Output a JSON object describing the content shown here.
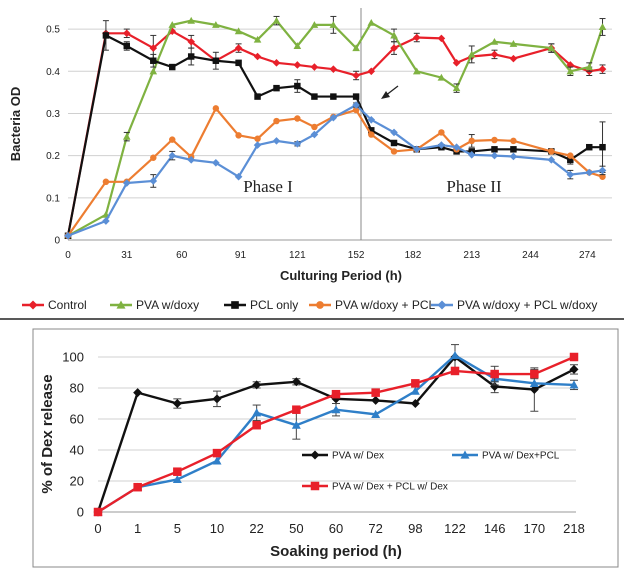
{
  "chart_data": [
    {
      "type": "line",
      "title": "",
      "xlabel": "Culturing Period (h)",
      "ylabel": "Bacteria OD",
      "x_tick_labels": [
        "0",
        "31",
        "60",
        "91",
        "121",
        "152",
        "182",
        "213",
        "244",
        "274"
      ],
      "ylim": [
        0,
        0.55
      ],
      "y_tick_labels": [
        "0",
        "0.1",
        "0.2",
        "0.3",
        "0.4",
        "0.5"
      ],
      "grid": "horizontal",
      "legend_position": "bottom",
      "annotations": [
        "Phase I",
        "Phase II"
      ],
      "x": [
        0,
        20,
        31,
        45,
        55,
        65,
        78,
        90,
        100,
        110,
        121,
        130,
        140,
        152,
        160,
        172,
        184,
        197,
        205,
        213,
        225,
        235,
        255,
        265,
        275,
        282
      ],
      "series": [
        {
          "name": "Control",
          "color": "#e8202a",
          "marker": "diamond",
          "values": [
            0.01,
            0.49,
            0.49,
            0.455,
            0.495,
            0.47,
            0.425,
            0.455,
            0.435,
            0.42,
            0.415,
            0.41,
            0.405,
            0.39,
            0.4,
            0.455,
            0.48,
            0.478,
            0.42,
            0.435,
            0.44,
            0.43,
            0.455,
            0.415,
            0.4,
            0.405
          ],
          "error": [
            0,
            0,
            0.01,
            0.03,
            0,
            0.015,
            0,
            0.01,
            0,
            0,
            0,
            0,
            0,
            0.01,
            0,
            0.015,
            0.01,
            0,
            0,
            0,
            0.01,
            0,
            0.01,
            0,
            0.01,
            0.01
          ]
        },
        {
          "name": "PVA w/doxy",
          "color": "#7fb241",
          "marker": "triangle",
          "values": [
            0.01,
            0.06,
            0.245,
            0.4,
            0.51,
            0.52,
            0.51,
            0.495,
            0.475,
            0.52,
            0.46,
            0.51,
            0.51,
            0.455,
            0.515,
            0.485,
            0.4,
            0.385,
            0.36,
            0.44,
            0.47,
            0.465,
            0.455,
            0.4,
            0.41,
            0.505
          ],
          "error": [
            0,
            0,
            0.01,
            0,
            0,
            0,
            0,
            0,
            0,
            0.01,
            0,
            0,
            0.02,
            0,
            0,
            0.015,
            0,
            0,
            0.01,
            0.02,
            0,
            0,
            0.01,
            0.01,
            0.01,
            0.02
          ]
        },
        {
          "name": "PCL only",
          "color": "#111111",
          "marker": "square",
          "values": [
            0.01,
            0.485,
            0.46,
            0.425,
            0.41,
            0.435,
            0.425,
            0.42,
            0.34,
            0.36,
            0.365,
            0.34,
            0.34,
            0.34,
            0.26,
            0.23,
            0.215,
            0.22,
            0.21,
            0.21,
            0.215,
            0.215,
            0.21,
            0.19,
            0.22,
            0.22
          ],
          "error": [
            0,
            0.035,
            0.01,
            0.015,
            0,
            0.02,
            0.02,
            0,
            0,
            0,
            0.015,
            0,
            0,
            0,
            0,
            0,
            0,
            0,
            0,
            0,
            0,
            0,
            0,
            0.01,
            0,
            0.06
          ]
        },
        {
          "name": "PVA w/doxy + PCL",
          "color": "#ed7d31",
          "marker": "circle",
          "values": [
            0.01,
            0.138,
            0.138,
            0.195,
            0.238,
            0.197,
            0.312,
            0.248,
            0.24,
            0.282,
            0.288,
            0.268,
            0.292,
            0.308,
            0.25,
            0.21,
            0.215,
            0.255,
            0.215,
            0.235,
            0.237,
            0.235,
            0.21,
            0.2,
            0.16,
            0.15
          ],
          "error": [
            0,
            0,
            0,
            0,
            0,
            0,
            0,
            0,
            0,
            0,
            0,
            0,
            0,
            0,
            0,
            0,
            0,
            0,
            0,
            0.015,
            0,
            0,
            0,
            0,
            0,
            0
          ]
        },
        {
          "name": "PVA w/doxy + PCL w/doxy",
          "color": "#5b8fd6",
          "marker": "diamond",
          "values": [
            0.01,
            0.045,
            0.135,
            0.14,
            0.2,
            0.19,
            0.183,
            0.15,
            0.225,
            0.235,
            0.228,
            0.25,
            0.29,
            0.32,
            0.285,
            0.255,
            0.215,
            0.225,
            0.22,
            0.202,
            0.2,
            0.198,
            0.19,
            0.155,
            0.16,
            0.165
          ],
          "error": [
            0,
            0,
            0,
            0.015,
            0.01,
            0,
            0,
            0,
            0,
            0,
            0.005,
            0,
            0,
            0.005,
            0,
            0,
            0,
            0,
            0,
            0,
            0,
            0,
            0,
            0.01,
            0,
            0.01
          ]
        }
      ]
    },
    {
      "type": "line",
      "title": "",
      "xlabel": "Soaking period (h)",
      "ylabel": "% of Dex release",
      "categories": [
        "0",
        "1",
        "5",
        "10",
        "22",
        "50",
        "60",
        "72",
        "98",
        "122",
        "146",
        "170",
        "218"
      ],
      "ylim": [
        0,
        100
      ],
      "y_tick_labels": [
        "0",
        "20",
        "40",
        "60",
        "80",
        "100"
      ],
      "grid": "horizontal",
      "legend_position": "inside-bottom-right",
      "series": [
        {
          "name": "PVA w/ Dex",
          "color": "#111111",
          "marker": "diamond",
          "values": [
            0,
            77,
            70,
            73,
            82,
            84,
            73,
            72,
            70,
            100,
            81,
            79,
            92
          ],
          "error": [
            0,
            0,
            3,
            5,
            2,
            2,
            0,
            0,
            0,
            8,
            4,
            14,
            3
          ]
        },
        {
          "name": "PVA w/ Dex+PCL",
          "color": "#2f7fc8",
          "marker": "triangle",
          "values": [
            0,
            16,
            21,
            33,
            64,
            56,
            66,
            63,
            78,
            101,
            86,
            83,
            82
          ],
          "error": [
            0,
            0,
            0,
            0,
            5,
            9,
            4,
            0,
            0,
            0,
            4,
            0,
            3
          ]
        },
        {
          "name": "PVA w/ Dex + PCL w/ Dex",
          "color": "#e8202a",
          "marker": "square",
          "values": [
            0,
            16,
            26,
            38,
            56,
            66,
            76,
            77,
            83,
            91,
            89,
            89,
            100
          ],
          "error": [
            0,
            0,
            0,
            0,
            0,
            0,
            0,
            0,
            0,
            0,
            5,
            3,
            0
          ]
        }
      ]
    }
  ]
}
